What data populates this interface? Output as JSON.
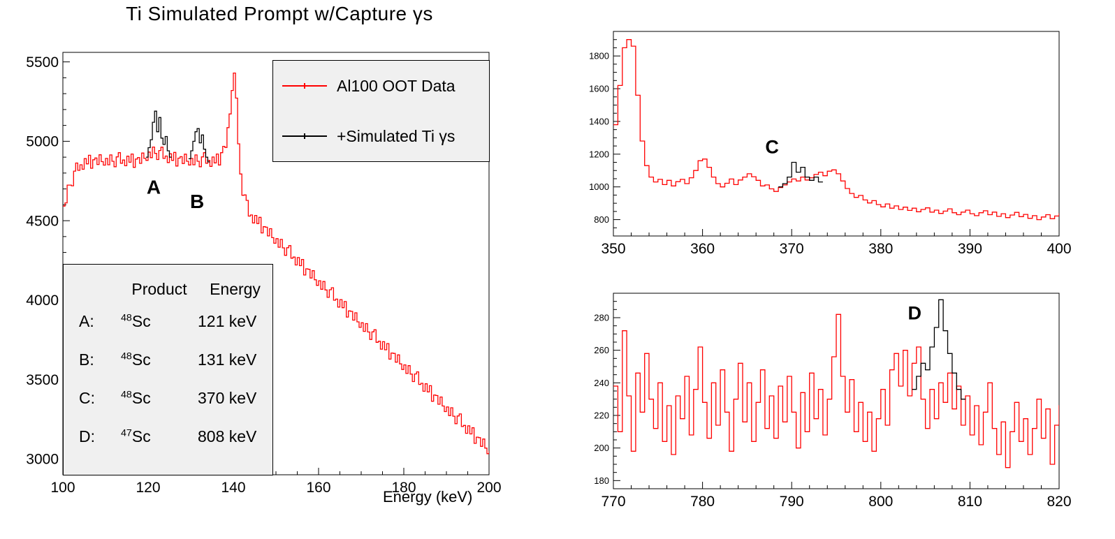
{
  "colors": {
    "data_red": "#ff0000",
    "sim_black": "#000000",
    "box_fill": "#f0f0f0"
  },
  "legend": {
    "entries": [
      {
        "label": "Al100 OOT Data",
        "color": "#ff0000"
      },
      {
        "label": "+Simulated Ti γs",
        "color": "#000000"
      }
    ]
  },
  "info_table": {
    "header": {
      "product": "Product",
      "energy": "Energy"
    },
    "rows": [
      {
        "label": "A:",
        "mass": "48",
        "element": "Sc",
        "energy": "121 keV"
      },
      {
        "label": "B:",
        "mass": "48",
        "element": "Sc",
        "energy": "131 keV"
      },
      {
        "label": "C:",
        "mass": "48",
        "element": "Sc",
        "energy": "370 keV"
      },
      {
        "label": "D:",
        "mass": "47",
        "element": "Sc",
        "energy": "808 keV"
      }
    ]
  },
  "chart_data": [
    {
      "type": "line",
      "title": "Ti Simulated Prompt w/Capture  γs",
      "xlabel": "Energy (keV)",
      "ylabel": "",
      "xlim": [
        100,
        200
      ],
      "ylim": [
        2900,
        5560
      ],
      "x_ticks": [
        100,
        120,
        140,
        160,
        180,
        200
      ],
      "y_ticks": [
        3000,
        3500,
        4000,
        4500,
        5000,
        5500
      ],
      "x_minor_step": 5,
      "y_minor_step": 100,
      "grid": false,
      "legend_position": "top-right",
      "annotations": [
        {
          "text": "A",
          "x": 121.3,
          "y": 4670
        },
        {
          "text": "B",
          "x": 131.5,
          "y": 4580
        }
      ],
      "series": [
        {
          "name": "Al100 OOT Data",
          "color": "#ff0000",
          "x_start": 100,
          "x_step": 0.5,
          "values": [
            4592,
            4612,
            4724,
            4724,
            4720,
            4812,
            4863,
            4817,
            4852,
            4824,
            4891,
            4858,
            4912,
            4830,
            4884,
            4895,
            4854,
            4915,
            4872,
            4850,
            4892,
            4852,
            4914,
            4874,
            4840,
            4902,
            4928,
            4862,
            4882,
            4846,
            4906,
            4868,
            4920,
            4836,
            4888,
            4898,
            4861,
            4926,
            4892,
            4880,
            4932,
            4897,
            4964,
            4924,
            4885,
            4942,
            4963,
            4892,
            4907,
            4866,
            4921,
            4880,
            4930,
            4844,
            4894,
            4903,
            4860,
            4919,
            4874,
            4851,
            4892,
            4852,
            4914,
            4874,
            4840,
            4902,
            4928,
            4862,
            4880,
            4842,
            4901,
            4864,
            4920,
            4851,
            4928,
            4968,
            4961,
            5086,
            5172,
            5320,
            5430,
            5272,
            4984,
            4794,
            4660,
            4662,
            4628,
            4529,
            4536,
            4486,
            4533,
            4482,
            4521,
            4423,
            4462,
            4459,
            4404,
            4450,
            4393,
            4358,
            4387,
            4333,
            4382,
            4329,
            4282,
            4330,
            4343,
            4264,
            4271,
            4221,
            4268,
            4217,
            4256,
            4158,
            4197,
            4194,
            4139,
            4185,
            4128,
            4093,
            4122,
            4068,
            4117,
            4064,
            4017,
            4065,
            4078,
            3999,
            4006,
            3956,
            4003,
            3952,
            3991,
            3893,
            3932,
            3929,
            3874,
            3920,
            3863,
            3828,
            3857,
            3803,
            3852,
            3799,
            3752,
            3800,
            3813,
            3734,
            3741,
            3691,
            3738,
            3687,
            3726,
            3628,
            3667,
            3664,
            3609,
            3655,
            3598,
            3563,
            3592,
            3538,
            3587,
            3534,
            3487,
            3535,
            3548,
            3469,
            3476,
            3426,
            3473,
            3422,
            3461,
            3363,
            3402,
            3399,
            3344,
            3390,
            3333,
            3298,
            3327,
            3273,
            3322,
            3269,
            3222,
            3270,
            3283,
            3204,
            3211,
            3161,
            3208,
            3157,
            3196,
            3098,
            3137,
            3134,
            3079,
            3125,
            3068,
            3033,
            3048
          ]
        },
        {
          "name": "+Simulated Ti γs (peak A)",
          "color": "#000000",
          "x_start": 119.5,
          "x_step": 0.5,
          "values": [
            4900,
            4960,
            5010,
            5120,
            5190,
            5060,
            5150,
            5020,
            4980,
            5030,
            4940,
            4900
          ]
        },
        {
          "name": "+Simulated Ti γs (peak B)",
          "color": "#000000",
          "x_start": 129.5,
          "x_step": 0.5,
          "values": [
            4890,
            4940,
            5000,
            5060,
            5080,
            4990,
            5040,
            4950,
            4900,
            4870
          ]
        }
      ]
    },
    {
      "type": "line",
      "title": "",
      "xlabel": "",
      "ylabel": "",
      "xlim": [
        350,
        400
      ],
      "ylim": [
        700,
        1950
      ],
      "x_ticks": [
        350,
        360,
        370,
        380,
        390,
        400
      ],
      "y_ticks": [
        800,
        1000,
        1200,
        1400,
        1600,
        1800
      ],
      "x_minor_step": 2,
      "y_minor_step": 50,
      "grid": false,
      "annotations": [
        {
          "text": "C",
          "x": 367.8,
          "y": 1205
        }
      ],
      "series": [
        {
          "name": "Al100 OOT Data",
          "color": "#ff0000",
          "x_start": 350,
          "x_step": 0.5,
          "values": [
            1380,
            1620,
            1850,
            1900,
            1860,
            1560,
            1280,
            1130,
            1060,
            1030,
            1046,
            1014,
            1040,
            1006,
            1032,
            1046,
            1020,
            1056,
            1100,
            1160,
            1170,
            1120,
            1060,
            1020,
            1000,
            1022,
            1048,
            1014,
            1042,
            1060,
            1080,
            1062,
            1040,
            1006,
            1012,
            988,
            972,
            996,
            1012,
            1030,
            1048,
            1036,
            1060,
            1042,
            1056,
            1076,
            1090,
            1068,
            1096,
            1104,
            1080,
            1036,
            990,
            960,
            936,
            948,
            920,
            902,
            916,
            892,
            878,
            896,
            870,
            884,
            862,
            876,
            856,
            870,
            848,
            862,
            872,
            846,
            858,
            838,
            852,
            866,
            842,
            830,
            846,
            858,
            836,
            824,
            842,
            854,
            830,
            846,
            820,
            836,
            812,
            828,
            844,
            818,
            832,
            808,
            824,
            800,
            816,
            830,
            806,
            822,
            836
          ]
        },
        {
          "name": "+Simulated Ti γs (peak C)",
          "color": "#000000",
          "x_start": 368.5,
          "x_step": 0.5,
          "values": [
            1000,
            1020,
            1060,
            1150,
            1090,
            1120,
            1060,
            1040,
            1060,
            1030
          ]
        }
      ]
    },
    {
      "type": "line",
      "title": "",
      "xlabel": "",
      "ylabel": "",
      "xlim": [
        770,
        820
      ],
      "ylim": [
        175,
        295
      ],
      "x_ticks": [
        770,
        780,
        790,
        800,
        810,
        820
      ],
      "y_ticks": [
        180,
        200,
        220,
        240,
        260,
        280
      ],
      "x_minor_step": 2,
      "y_minor_step": 5,
      "grid": false,
      "annotations": [
        {
          "text": "D",
          "x": 803.8,
          "y": 279
        }
      ],
      "series": [
        {
          "name": "Al100 OOT Data",
          "color": "#ff0000",
          "x_start": 770,
          "x_step": 0.5,
          "values": [
            238,
            210,
            272,
            232,
            198,
            246,
            222,
            258,
            230,
            212,
            240,
            204,
            226,
            196,
            232,
            218,
            244,
            208,
            236,
            262,
            228,
            206,
            240,
            214,
            248,
            222,
            198,
            230,
            252,
            216,
            240,
            204,
            228,
            248,
            212,
            232,
            206,
            238,
            216,
            244,
            222,
            200,
            234,
            210,
            246,
            218,
            236,
            208,
            230,
            256,
            282,
            244,
            222,
            242,
            210,
            228,
            204,
            222,
            198,
            218,
            236,
            214,
            248,
            258,
            238,
            260,
            232,
            252,
            262,
            230,
            212,
            236,
            218,
            240,
            228,
            246,
            224,
            238,
            214,
            232,
            208,
            226,
            202,
            222,
            240,
            212,
            196,
            216,
            188,
            210,
            228,
            204,
            218,
            196,
            212,
            230,
            206,
            224,
            190,
            214,
            226
          ]
        },
        {
          "name": "+Simulated Ti γs (peak D)",
          "color": "#000000",
          "x_start": 803.5,
          "x_step": 0.5,
          "values": [
            236,
            244,
            252,
            248,
            262,
            274,
            291,
            272,
            258,
            246,
            236,
            230
          ]
        }
      ]
    }
  ]
}
